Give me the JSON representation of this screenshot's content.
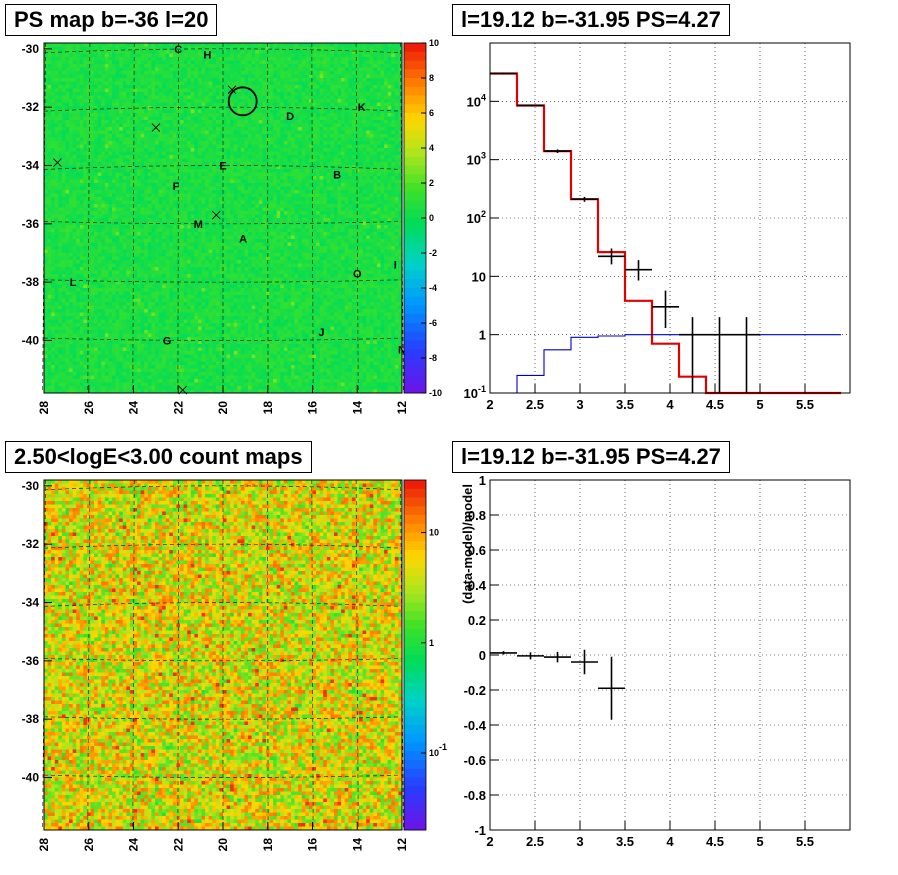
{
  "titles": {
    "top_left": "PS map b=-36 l=20",
    "top_right": "l=19.12 b=-31.95 PS=4.27",
    "bottom_left": "2.50<logE<3.00 count maps",
    "bottom_right": "l=19.12 b=-31.95 PS=4.27"
  },
  "colors": {
    "axis": "#000000",
    "grid": "#000000",
    "model": "#e00000",
    "background_model": "#0000cc",
    "data": "#000000"
  },
  "chart_data": [
    {
      "id": "ps_map",
      "type": "heatmap",
      "title": "PS map b=-36 l=20",
      "x_ticks": [
        "28",
        "26",
        "24",
        "22",
        "20",
        "18",
        "16",
        "14",
        "12"
      ],
      "y_ticks": [
        "-30",
        "-32",
        "-34",
        "-36",
        "-38",
        "-40"
      ],
      "xlim": [
        28,
        12
      ],
      "ylim": [
        -41.8,
        -29.8
      ],
      "colorbar": {
        "scale": "linear",
        "range": [
          -10,
          10
        ],
        "ticks": [
          "10",
          "8",
          "6",
          "4",
          "2",
          "0",
          "-2",
          "-4",
          "-6",
          "-8",
          "-10"
        ]
      },
      "dominant_level": 0.5,
      "circle_center": {
        "l": 19.12,
        "b": -31.8
      },
      "crosses": [
        {
          "l": 19.6,
          "b": -31.4
        },
        {
          "l": 23.0,
          "b": -32.7
        },
        {
          "l": 27.4,
          "b": -33.9
        },
        {
          "l": 20.3,
          "b": -35.7
        },
        {
          "l": 21.8,
          "b": -41.7
        }
      ],
      "labels": [
        {
          "text": "C",
          "l": 22.0,
          "b": -30.0
        },
        {
          "text": "H",
          "l": 20.7,
          "b": -30.2
        },
        {
          "text": "D",
          "l": 17.0,
          "b": -32.3
        },
        {
          "text": "K",
          "l": 13.8,
          "b": -32.0
        },
        {
          "text": "E",
          "l": 20.0,
          "b": -34.0
        },
        {
          "text": "B",
          "l": 14.9,
          "b": -34.3
        },
        {
          "text": "F",
          "l": 22.1,
          "b": -34.7
        },
        {
          "text": "M",
          "l": 21.1,
          "b": -36.0
        },
        {
          "text": "A",
          "l": 19.1,
          "b": -36.5
        },
        {
          "text": "O",
          "l": 14.0,
          "b": -37.7
        },
        {
          "text": "I",
          "l": 12.3,
          "b": -37.4
        },
        {
          "text": "L",
          "l": 26.7,
          "b": -38.0
        },
        {
          "text": "N",
          "l": 12.0,
          "b": -40.3
        },
        {
          "text": "J",
          "l": 15.6,
          "b": -39.7
        },
        {
          "text": "G",
          "l": 22.5,
          "b": -40.0
        }
      ]
    },
    {
      "id": "spectrum",
      "type": "line",
      "title": "l=19.12 b=-31.95 PS=4.27",
      "yscale": "log",
      "xlim": [
        2,
        6
      ],
      "ylim": [
        0.1,
        100000
      ],
      "x_ticks": [
        "2",
        "2.5",
        "3",
        "3.5",
        "4",
        "4.5",
        "5",
        "5.5"
      ],
      "y_ticks": [
        "10^-1",
        "1",
        "10",
        "10^2",
        "10^3",
        "10^4"
      ],
      "grid": true,
      "series": [
        {
          "kind": "step",
          "edges": [
            2.0,
            2.3,
            2.6,
            2.9,
            3.2,
            3.5,
            3.8,
            4.1,
            4.4,
            4.7,
            5.0,
            5.3,
            5.6,
            5.9
          ],
          "values": [
            30000,
            8500,
            1400,
            210,
            26,
            3.8,
            0.7,
            0.19,
            0.1,
            0.1,
            0.1,
            0.1,
            0.1
          ]
        },
        {
          "kind": "step",
          "edges": [
            2.0,
            2.3,
            2.6,
            2.9,
            3.2,
            3.5,
            3.8,
            4.1,
            4.4,
            4.7,
            5.0,
            5.3,
            5.6,
            5.9
          ],
          "values": [
            0.1,
            0.2,
            0.55,
            0.9,
            0.95,
            1.0,
            1.0,
            1.0,
            1.0,
            1.0,
            1.0,
            1.0,
            1.0
          ]
        },
        {
          "kind": "errorbar",
          "points": [
            {
              "x": 2.15,
              "y": 30000,
              "xerr": 0.15,
              "ylo": 29000,
              "yhi": 31000
            },
            {
              "x": 2.45,
              "y": 8500,
              "xerr": 0.15,
              "ylo": 8200,
              "yhi": 8800
            },
            {
              "x": 2.75,
              "y": 1400,
              "xerr": 0.15,
              "ylo": 1300,
              "yhi": 1500
            },
            {
              "x": 3.05,
              "y": 210,
              "xerr": 0.15,
              "ylo": 190,
              "yhi": 230
            },
            {
              "x": 3.35,
              "y": 22,
              "xerr": 0.15,
              "ylo": 16,
              "yhi": 30
            },
            {
              "x": 3.65,
              "y": 13,
              "xerr": 0.15,
              "ylo": 8.5,
              "yhi": 19
            },
            {
              "x": 3.95,
              "y": 3.0,
              "xerr": 0.15,
              "ylo": 1.3,
              "yhi": 5.7
            },
            {
              "x": 4.25,
              "y": 1.0,
              "xerr": 0.15,
              "ylo": 0.1,
              "yhi": 2.0
            },
            {
              "x": 4.55,
              "y": 1.0,
              "xerr": 0.15,
              "ylo": 0.1,
              "yhi": 2.0
            },
            {
              "x": 4.85,
              "y": 1.0,
              "xerr": 0.15,
              "ylo": 0.1,
              "yhi": 2.0
            }
          ]
        }
      ]
    },
    {
      "id": "count_map",
      "type": "heatmap",
      "title": "2.50<logE<3.00 count maps",
      "x_ticks": [
        "28",
        "26",
        "24",
        "22",
        "20",
        "18",
        "16",
        "14",
        "12"
      ],
      "y_ticks": [
        "-30",
        "-32",
        "-34",
        "-36",
        "-38",
        "-40"
      ],
      "xlim": [
        28,
        12
      ],
      "ylim": [
        -41.8,
        -29.8
      ],
      "colorbar": {
        "scale": "log",
        "range": [
          0.02,
          30
        ],
        "ticks": [
          "10",
          "1",
          "10^-1"
        ]
      },
      "dominant_level": 6
    },
    {
      "id": "residuals",
      "type": "scatter",
      "title": "l=19.12 b=-31.95 PS=4.27",
      "ylabel": "(data-model)/model",
      "xlim": [
        2,
        6
      ],
      "ylim": [
        -1,
        1
      ],
      "x_ticks": [
        "2",
        "2.5",
        "3",
        "3.5",
        "4",
        "4.5",
        "5",
        "5.5"
      ],
      "y_ticks": [
        "1",
        "0.8",
        "0.6",
        "0.4",
        "0.2",
        "0",
        "-0.2",
        "-0.4",
        "-0.6",
        "-0.8",
        "-1"
      ],
      "grid": true,
      "points": [
        {
          "x": 2.15,
          "y": 0.012,
          "xerr": 0.15,
          "yerr": 0.01
        },
        {
          "x": 2.45,
          "y": -0.005,
          "xerr": 0.15,
          "yerr": 0.02
        },
        {
          "x": 2.75,
          "y": -0.012,
          "xerr": 0.15,
          "yerr": 0.03
        },
        {
          "x": 3.05,
          "y": -0.04,
          "xerr": 0.15,
          "yerr": 0.07
        },
        {
          "x": 3.35,
          "y": -0.19,
          "xerr": 0.15,
          "yerr": 0.18
        }
      ]
    }
  ]
}
